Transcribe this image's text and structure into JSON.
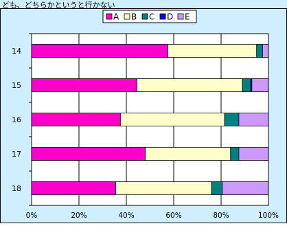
{
  "header_text": "ども、どちらかというと行かない",
  "colors": {
    "outer_bg": "#cfeeff",
    "plot_bg": "#ffffff",
    "border": "#000000",
    "grid": "#000000"
  },
  "chart_data": {
    "type": "bar",
    "orientation": "horizontal",
    "stacked": true,
    "percent": true,
    "categories": [
      "14",
      "15",
      "16",
      "17",
      "18"
    ],
    "series": [
      {
        "name": "A",
        "color": "#ff00cc",
        "values": [
          57.5,
          44.5,
          37.5,
          48.0,
          35.5
        ]
      },
      {
        "name": "B",
        "color": "#ffffcc",
        "values": [
          37.5,
          44.5,
          44.0,
          36.0,
          40.5
        ]
      },
      {
        "name": "C",
        "color": "#008080",
        "values": [
          2.5,
          3.5,
          6.0,
          3.5,
          4.5
        ]
      },
      {
        "name": "D",
        "color": "#0000ff",
        "values": [
          0.0,
          0.5,
          0.0,
          0.0,
          0.0
        ]
      },
      {
        "name": "E",
        "color": "#cc99ff",
        "values": [
          2.5,
          7.0,
          12.5,
          12.5,
          19.5
        ]
      }
    ],
    "x_ticks": [
      "0%",
      "20%",
      "40%",
      "60%",
      "80%",
      "100%"
    ],
    "xlim": [
      0,
      100
    ],
    "grid": true,
    "legend_position": "top"
  }
}
